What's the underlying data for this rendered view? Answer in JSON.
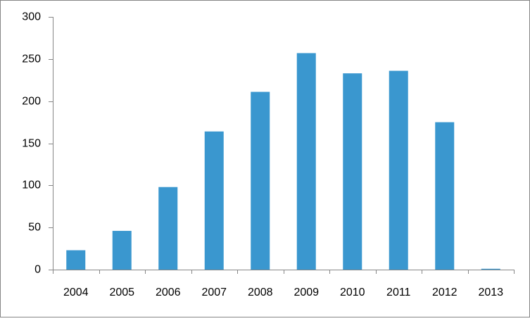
{
  "chart_data": {
    "type": "bar",
    "categories": [
      "2004",
      "2005",
      "2006",
      "2007",
      "2008",
      "2009",
      "2010",
      "2011",
      "2012",
      "2013"
    ],
    "values": [
      23,
      46,
      98,
      164,
      211,
      257,
      233,
      236,
      175,
      1
    ],
    "color": "#3a97cf",
    "ylim": [
      0,
      300
    ],
    "yticks": [
      0,
      50,
      100,
      150,
      200,
      250,
      300
    ],
    "grid": false
  }
}
